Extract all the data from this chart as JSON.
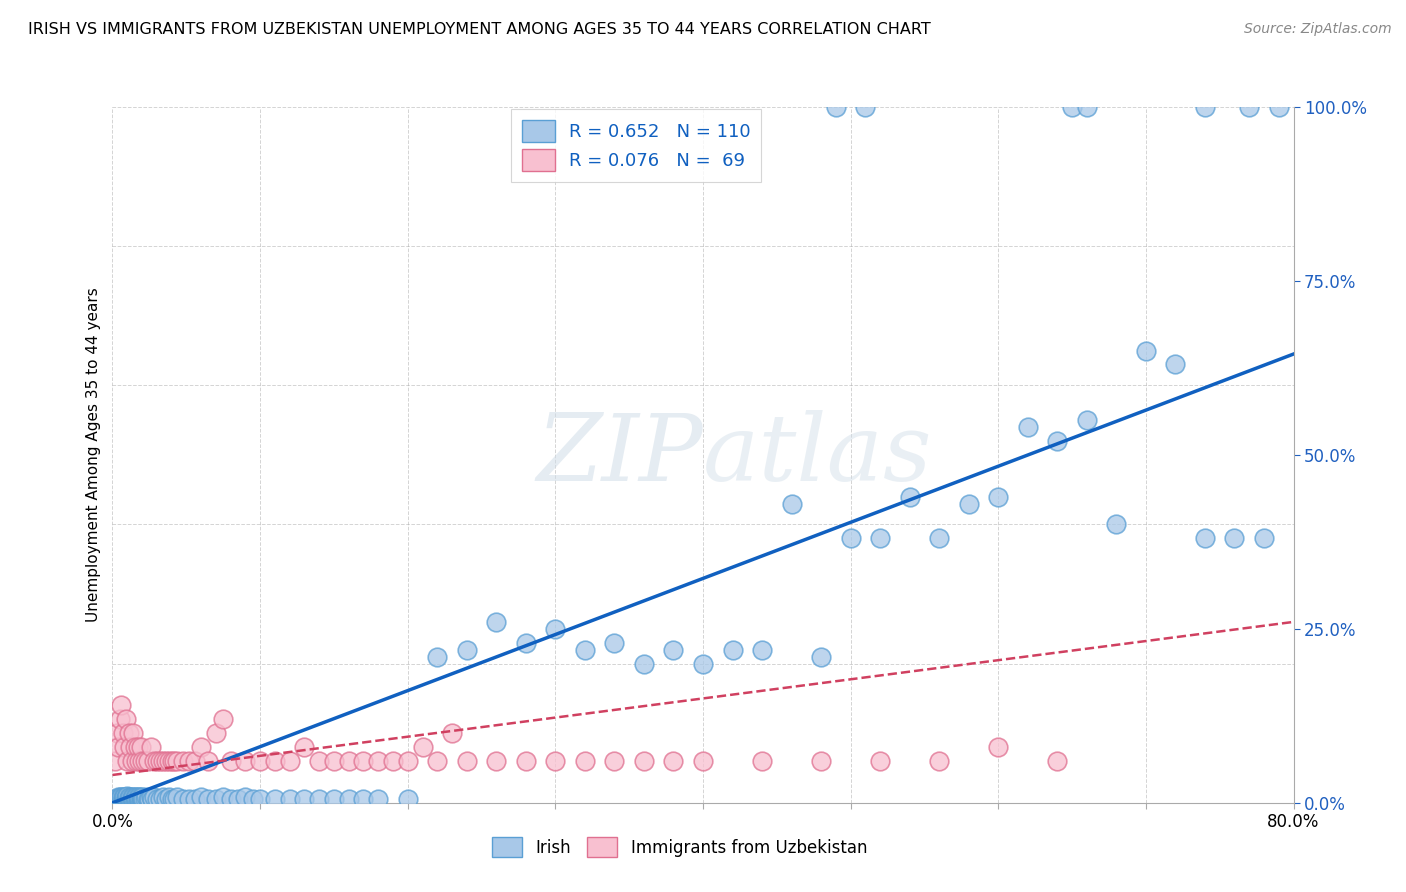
{
  "title": "IRISH VS IMMIGRANTS FROM UZBEKISTAN UNEMPLOYMENT AMONG AGES 35 TO 44 YEARS CORRELATION CHART",
  "source": "Source: ZipAtlas.com",
  "ylabel": "Unemployment Among Ages 35 to 44 years",
  "xlim": [
    0.0,
    0.8
  ],
  "ylim": [
    0.0,
    1.0
  ],
  "xtick_vals": [
    0.0,
    0.1,
    0.2,
    0.3,
    0.4,
    0.5,
    0.6,
    0.7,
    0.8
  ],
  "xtick_labels": [
    "0.0%",
    "",
    "",
    "",
    "",
    "",
    "",
    "",
    "80.0%"
  ],
  "ytick_vals": [
    0.0,
    0.25,
    0.5,
    0.75,
    1.0
  ],
  "ytick_labels": [
    "0.0%",
    "25.0%",
    "50.0%",
    "75.0%",
    "100.0%"
  ],
  "legend_irish_R": "R = 0.652",
  "legend_irish_N": "N = 110",
  "legend_uzb_R": "R = 0.076",
  "legend_uzb_N": "N =  69",
  "irish_color": "#a8c8e8",
  "irish_edge_color": "#5a9fd4",
  "uzb_color": "#f8c0d0",
  "uzb_edge_color": "#e07090",
  "irish_trend_color": "#1060c0",
  "uzb_trend_color": "#d04060",
  "background_color": "#ffffff",
  "grid_color": "#aaaaaa",
  "watermark": "ZIPatlas",
  "irish_x": [
    0.002,
    0.003,
    0.004,
    0.004,
    0.005,
    0.005,
    0.006,
    0.006,
    0.007,
    0.007,
    0.008,
    0.008,
    0.009,
    0.009,
    0.01,
    0.01,
    0.01,
    0.011,
    0.011,
    0.012,
    0.012,
    0.013,
    0.013,
    0.014,
    0.014,
    0.015,
    0.015,
    0.016,
    0.016,
    0.017,
    0.017,
    0.018,
    0.018,
    0.019,
    0.019,
    0.02,
    0.02,
    0.021,
    0.022,
    0.023,
    0.024,
    0.025,
    0.026,
    0.027,
    0.028,
    0.03,
    0.032,
    0.034,
    0.036,
    0.038,
    0.04,
    0.042,
    0.044,
    0.048,
    0.052,
    0.056,
    0.06,
    0.065,
    0.07,
    0.075,
    0.08,
    0.085,
    0.09,
    0.095,
    0.1,
    0.11,
    0.12,
    0.13,
    0.14,
    0.15,
    0.16,
    0.17,
    0.18,
    0.2,
    0.22,
    0.24,
    0.26,
    0.28,
    0.3,
    0.32,
    0.34,
    0.36,
    0.38,
    0.4,
    0.42,
    0.44,
    0.46,
    0.48,
    0.5,
    0.52,
    0.54,
    0.56,
    0.58,
    0.6,
    0.62,
    0.64,
    0.66,
    0.68,
    0.7,
    0.72,
    0.74,
    0.76,
    0.78,
    0.49,
    0.51,
    0.65,
    0.66,
    0.74,
    0.77,
    0.79
  ],
  "irish_y": [
    0.005,
    0.005,
    0.005,
    0.008,
    0.005,
    0.008,
    0.005,
    0.008,
    0.005,
    0.008,
    0.005,
    0.008,
    0.005,
    0.008,
    0.005,
    0.008,
    0.01,
    0.005,
    0.008,
    0.005,
    0.008,
    0.005,
    0.008,
    0.005,
    0.008,
    0.005,
    0.008,
    0.005,
    0.008,
    0.005,
    0.008,
    0.005,
    0.008,
    0.005,
    0.008,
    0.005,
    0.008,
    0.005,
    0.005,
    0.008,
    0.005,
    0.005,
    0.008,
    0.005,
    0.008,
    0.005,
    0.005,
    0.008,
    0.005,
    0.008,
    0.005,
    0.005,
    0.008,
    0.005,
    0.005,
    0.005,
    0.008,
    0.005,
    0.005,
    0.008,
    0.005,
    0.005,
    0.008,
    0.005,
    0.005,
    0.005,
    0.005,
    0.005,
    0.005,
    0.005,
    0.005,
    0.005,
    0.005,
    0.005,
    0.21,
    0.22,
    0.26,
    0.23,
    0.25,
    0.22,
    0.23,
    0.2,
    0.22,
    0.2,
    0.22,
    0.22,
    0.43,
    0.21,
    0.38,
    0.38,
    0.44,
    0.38,
    0.43,
    0.44,
    0.54,
    0.52,
    0.55,
    0.4,
    0.65,
    0.63,
    0.38,
    0.38,
    0.38,
    1.0,
    1.0,
    1.0,
    1.0,
    1.0,
    1.0,
    1.0
  ],
  "uzb_x": [
    0.002,
    0.003,
    0.004,
    0.005,
    0.006,
    0.007,
    0.008,
    0.009,
    0.01,
    0.011,
    0.012,
    0.013,
    0.014,
    0.015,
    0.016,
    0.017,
    0.018,
    0.019,
    0.02,
    0.022,
    0.024,
    0.026,
    0.028,
    0.03,
    0.032,
    0.034,
    0.036,
    0.038,
    0.04,
    0.042,
    0.044,
    0.048,
    0.052,
    0.056,
    0.06,
    0.065,
    0.07,
    0.075,
    0.08,
    0.09,
    0.1,
    0.11,
    0.12,
    0.13,
    0.14,
    0.15,
    0.16,
    0.17,
    0.18,
    0.19,
    0.2,
    0.21,
    0.22,
    0.23,
    0.24,
    0.26,
    0.28,
    0.3,
    0.32,
    0.34,
    0.36,
    0.38,
    0.4,
    0.44,
    0.48,
    0.52,
    0.56,
    0.6,
    0.64
  ],
  "uzb_y": [
    0.06,
    0.1,
    0.08,
    0.12,
    0.14,
    0.1,
    0.08,
    0.12,
    0.06,
    0.1,
    0.08,
    0.06,
    0.1,
    0.08,
    0.06,
    0.08,
    0.06,
    0.08,
    0.06,
    0.06,
    0.06,
    0.08,
    0.06,
    0.06,
    0.06,
    0.06,
    0.06,
    0.06,
    0.06,
    0.06,
    0.06,
    0.06,
    0.06,
    0.06,
    0.08,
    0.06,
    0.1,
    0.12,
    0.06,
    0.06,
    0.06,
    0.06,
    0.06,
    0.08,
    0.06,
    0.06,
    0.06,
    0.06,
    0.06,
    0.06,
    0.06,
    0.08,
    0.06,
    0.1,
    0.06,
    0.06,
    0.06,
    0.06,
    0.06,
    0.06,
    0.06,
    0.06,
    0.06,
    0.06,
    0.06,
    0.06,
    0.06,
    0.08,
    0.06
  ],
  "irish_trend_x": [
    0.0,
    0.8
  ],
  "irish_trend_y": [
    0.0,
    0.645
  ],
  "uzb_trend_x": [
    0.0,
    0.8
  ],
  "uzb_trend_y": [
    0.04,
    0.26
  ]
}
